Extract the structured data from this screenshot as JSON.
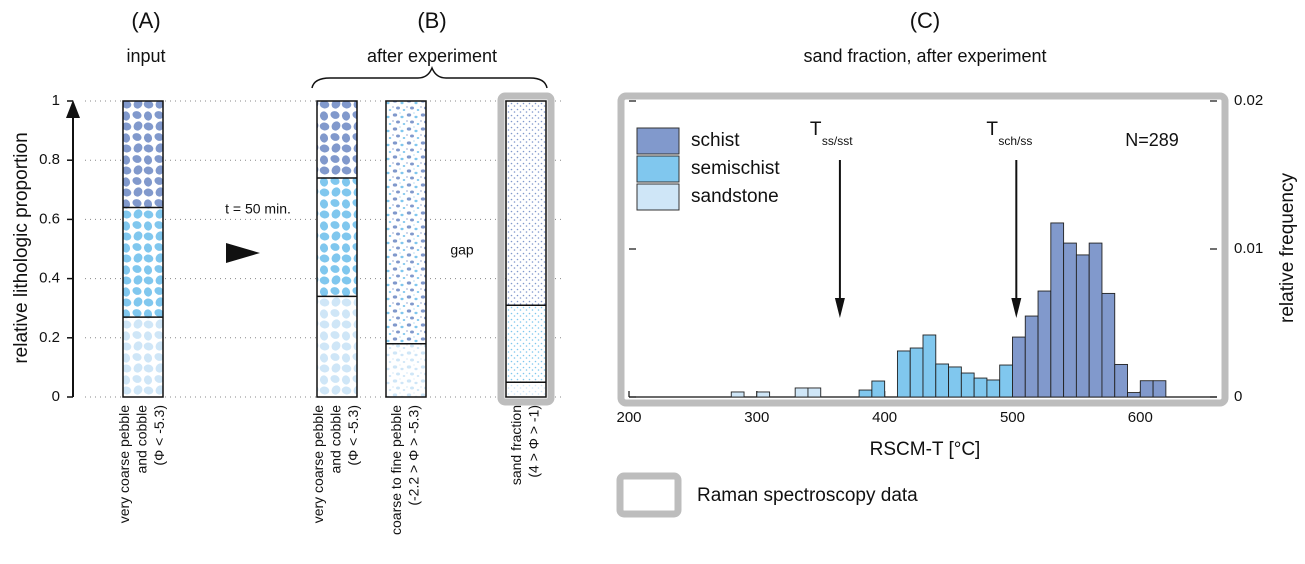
{
  "chart_data": [
    {
      "type": "column",
      "panels": [
        {
          "label": "(A)",
          "title": "input"
        },
        {
          "label": "(B)",
          "title": "after experiment"
        }
      ],
      "ylabel": "relative lithologic proportion",
      "ylim": [
        0,
        1
      ],
      "yticks": [
        0,
        0.2,
        0.4,
        0.6,
        0.8,
        1
      ],
      "grid": true,
      "columns": [
        {
          "label": [
            "very coarse pebble",
            "and cobble",
            "(Φ < -5.3)"
          ],
          "boundaries": [
            0.27,
            0.64
          ]
        },
        {
          "label": [
            "very coarse pebble",
            "and cobble",
            "(Φ < -5.3)"
          ],
          "boundaries": [
            0.34,
            0.74
          ]
        },
        {
          "label": [
            "coarse to fine pebble",
            "(-2.2 > Φ > -5.3)"
          ],
          "boundaries": [
            0.18
          ]
        },
        {
          "label": [
            "sand fraction",
            "(4 > Φ > -1)"
          ],
          "boundaries": [
            0.05,
            0.31
          ]
        }
      ],
      "arrow_label": "t = 50 min.",
      "gap_label": "gap"
    },
    {
      "type": "histogram",
      "label": "(C)",
      "title": "sand fraction, after experiment",
      "xlabel": "RSCM-T [°C]",
      "ylabel": "relative frequency",
      "bins": [
        280,
        290,
        300,
        310,
        320,
        330,
        340,
        350,
        360,
        370,
        380,
        390,
        400,
        410,
        420,
        430,
        440,
        450,
        460,
        470,
        480,
        490,
        500,
        510,
        520,
        530,
        540,
        550,
        560,
        570,
        580,
        590,
        600,
        610,
        620
      ],
      "series": [
        {
          "name": "schist",
          "color": "#8199cc",
          "values": [
            0,
            0,
            0,
            0,
            0,
            0,
            0,
            0,
            0,
            0,
            0,
            0,
            0,
            0,
            0,
            0,
            0,
            0,
            0,
            0,
            0,
            0,
            0.00405,
            0.00547,
            0.00716,
            0.01176,
            0.0104,
            0.0096,
            0.0104,
            0.007,
            0.0022,
            0.0003,
            0.0011,
            0.0011
          ]
        },
        {
          "name": "semischist",
          "color": "#80c7ee",
          "values": [
            0,
            0,
            0,
            0,
            0,
            0,
            0,
            0,
            0,
            0,
            0.00047,
            0.00108,
            0,
            0.00311,
            0.00331,
            0.00419,
            0.00223,
            0.00203,
            0.00162,
            0.00128,
            0.00115,
            0.00216,
            0,
            0,
            0,
            0,
            0,
            0,
            0,
            0,
            0,
            0,
            0,
            0
          ]
        },
        {
          "name": "sandstone",
          "color": "#cfe6f7",
          "values": [
            0.00034,
            0,
            0.00034,
            0,
            0,
            0.00061,
            0.00061,
            0,
            0,
            0,
            0,
            0,
            0,
            0,
            0,
            0,
            0,
            0,
            0,
            0,
            0,
            0,
            0,
            0,
            0,
            0,
            0,
            0,
            0,
            0,
            0,
            0,
            0,
            0
          ]
        }
      ],
      "xlim": [
        200,
        660
      ],
      "xticks": [
        200,
        300,
        400,
        500,
        600
      ],
      "ylim": [
        0,
        0.02
      ],
      "yticks": [
        0,
        0.01,
        0.02
      ],
      "legend": "top-left",
      "markers": [
        {
          "text": "T",
          "sub": "ss/sst",
          "x": 365
        },
        {
          "text": "T",
          "sub": "sch/ss",
          "x": 503
        }
      ],
      "note": "N=289",
      "frame_legend": "Raman spectroscopy data"
    }
  ]
}
